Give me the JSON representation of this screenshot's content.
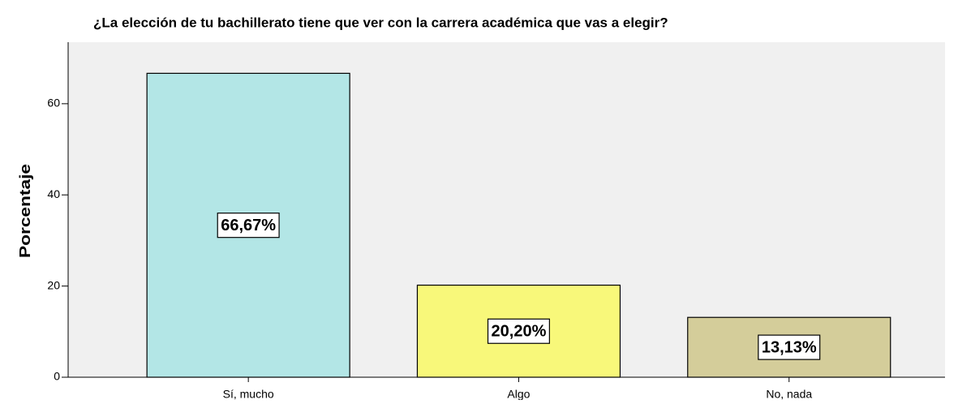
{
  "chart_data": {
    "type": "bar",
    "title": "¿La elección de tu bachillerato tiene que ver con la carrera académica que vas a elegir?",
    "y_label": "Porcentaje",
    "categories": [
      "Sí, mucho",
      "Algo",
      "No, nada"
    ],
    "values": [
      66.67,
      20.2,
      13.13
    ],
    "value_labels": [
      "66,67%",
      "20,20%",
      "13,13%"
    ],
    "colors": [
      "#b3e6e6",
      "#f8f87a",
      "#d4cd9a"
    ],
    "ylim": [
      0,
      73.5
    ],
    "yticks": [
      0,
      20,
      40,
      60
    ],
    "grid": false
  }
}
